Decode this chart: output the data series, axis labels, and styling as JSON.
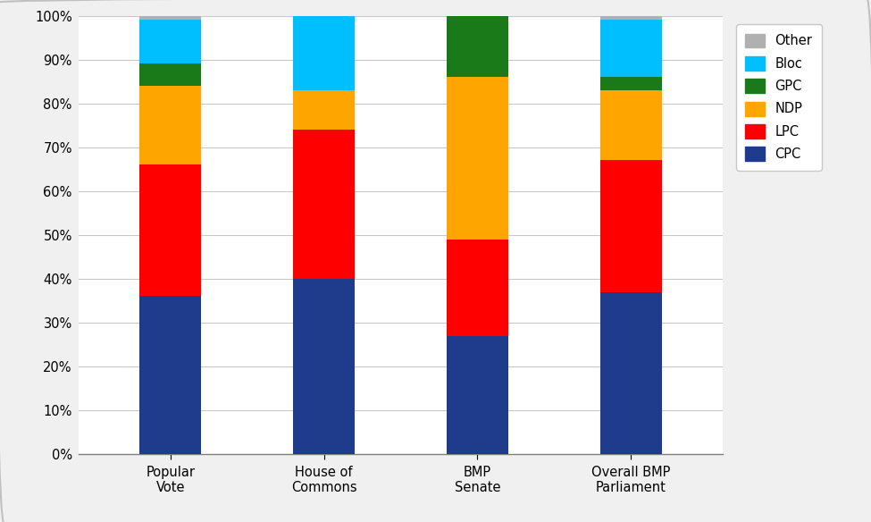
{
  "categories": [
    "Popular\nVote",
    "House of\nCommons",
    "BMP\nSenate",
    "Overall BMP\nParliament"
  ],
  "series": {
    "CPC": [
      36.0,
      40.0,
      27.0,
      37.0
    ],
    "LPC": [
      30.0,
      34.0,
      22.0,
      30.0
    ],
    "NDP": [
      18.0,
      9.0,
      37.0,
      16.0
    ],
    "GPC": [
      5.0,
      0.0,
      14.0,
      3.0
    ],
    "Bloc": [
      10.0,
      17.0,
      0.0,
      13.0
    ],
    "Other": [
      1.0,
      0.0,
      0.0,
      1.0
    ]
  },
  "colors": {
    "CPC": "#1F3B8C",
    "LPC": "#FF0000",
    "NDP": "#FFA500",
    "GPC": "#1A7A1A",
    "Bloc": "#00BFFF",
    "Other": "#B0B0B0"
  },
  "legend_order": [
    "Other",
    "Bloc",
    "GPC",
    "NDP",
    "LPC",
    "CPC"
  ],
  "ylim": [
    0,
    100
  ],
  "ytick_labels": [
    "0%",
    "10%",
    "20%",
    "30%",
    "40%",
    "50%",
    "60%",
    "70%",
    "80%",
    "90%",
    "100%"
  ],
  "ytick_values": [
    0,
    10,
    20,
    30,
    40,
    50,
    60,
    70,
    80,
    90,
    100
  ],
  "background_color": "#FFFFFF",
  "grid_color": "#C8C8C8",
  "bar_width": 0.4,
  "figsize": [
    9.75,
    5.84
  ],
  "dpi": 100
}
